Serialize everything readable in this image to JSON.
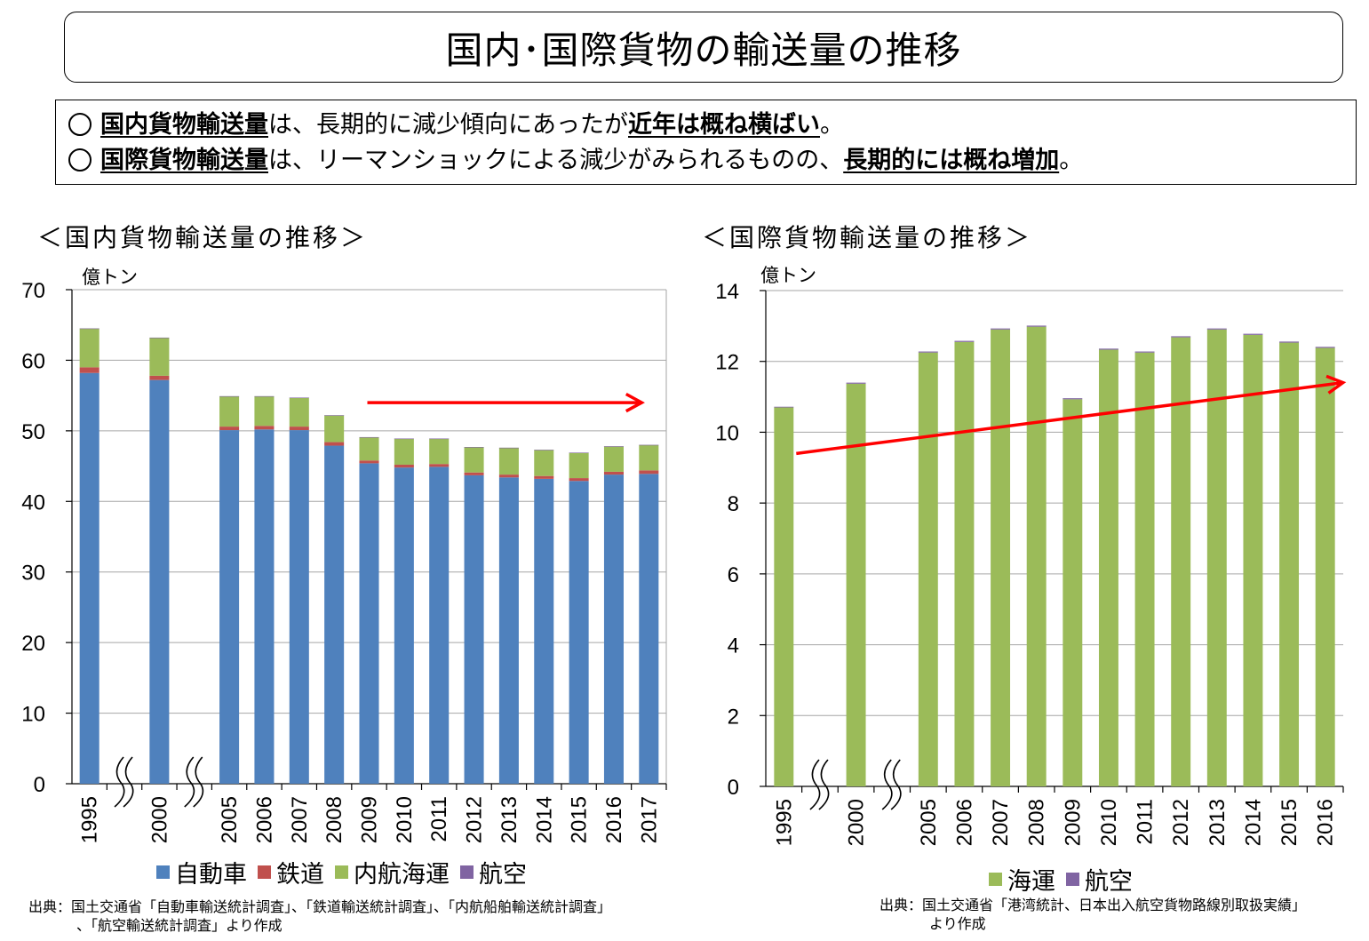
{
  "page": {
    "title": "国内･国際貨物の輸送量の推移",
    "summary": [
      {
        "bullet": "○",
        "parts": [
          {
            "text": "国内貨物輸送量",
            "em": true
          },
          {
            "text": "は、長期的に減少傾向にあったが",
            "em": false
          },
          {
            "text": "近年は概ね横ばい",
            "em": true
          },
          {
            "text": "。",
            "em": false
          }
        ]
      },
      {
        "bullet": "○",
        "parts": [
          {
            "text": "国際貨物輸送量",
            "em": true
          },
          {
            "text": "は、リーマンショックによる減少がみられるものの、",
            "em": false
          },
          {
            "text": "長期的には概ね増加",
            "em": true
          },
          {
            "text": "。",
            "em": false
          }
        ]
      }
    ]
  },
  "chart_data": [
    {
      "type": "bar",
      "stacked": true,
      "title": "＜国内貨物輸送量の推移＞",
      "ylabel": "億トン",
      "ylim": [
        0,
        70
      ],
      "yticks": [
        0,
        10,
        20,
        30,
        40,
        50,
        60,
        70
      ],
      "grid": true,
      "axis_breaks_after": [
        "1995",
        "2000"
      ],
      "categories": [
        "1995",
        "2000",
        "2005",
        "2006",
        "2007",
        "2008",
        "2009",
        "2010",
        "2011",
        "2012",
        "2013",
        "2014",
        "2015",
        "2016",
        "2017"
      ],
      "series": [
        {
          "name": "自動車",
          "color": "#4f81bd",
          "values": [
            58.2,
            57.2,
            50.1,
            50.2,
            50.1,
            47.9,
            45.4,
            44.8,
            44.9,
            43.7,
            43.4,
            43.2,
            42.9,
            43.8,
            43.9
          ]
        },
        {
          "name": "鉄道",
          "color": "#c0504d",
          "values": [
            0.8,
            0.6,
            0.5,
            0.5,
            0.5,
            0.5,
            0.4,
            0.4,
            0.4,
            0.4,
            0.4,
            0.4,
            0.4,
            0.4,
            0.5
          ]
        },
        {
          "name": "内航海運",
          "color": "#9bbb59",
          "values": [
            5.5,
            5.4,
            4.3,
            4.2,
            4.1,
            3.8,
            3.3,
            3.7,
            3.6,
            3.6,
            3.8,
            3.7,
            3.6,
            3.6,
            3.6
          ]
        },
        {
          "name": "航空",
          "color": "#8064a2",
          "values": [
            0.01,
            0.01,
            0.01,
            0.01,
            0.01,
            0.01,
            0.01,
            0.01,
            0.01,
            0.01,
            0.01,
            0.01,
            0.01,
            0.01,
            0.01
          ]
        }
      ],
      "trend_arrow": {
        "color": "#ff0000",
        "from_x": "2009",
        "to_x": "2017",
        "from_y": 54,
        "to_y": 54
      },
      "source": [
        "出典：国土交通省「自動車輸送統計調査」、「鉄道輸送統計調査」、「内航船舶輸送統計調査」",
        "、「航空輸送統計調査」より作成"
      ]
    },
    {
      "type": "bar",
      "stacked": true,
      "title": "＜国際貨物輸送量の推移＞",
      "ylabel": "億トン",
      "ylim": [
        0,
        14
      ],
      "yticks": [
        0,
        2,
        4,
        6,
        8,
        10,
        12,
        14
      ],
      "grid": true,
      "axis_breaks_after": [
        "1995",
        "2000"
      ],
      "categories": [
        "1995",
        "2000",
        "2005",
        "2006",
        "2007",
        "2008",
        "2009",
        "2010",
        "2011",
        "2012",
        "2013",
        "2014",
        "2015",
        "2016"
      ],
      "series": [
        {
          "name": "海運",
          "color": "#9bbb59",
          "values": [
            10.7,
            11.37,
            12.25,
            12.55,
            12.9,
            12.98,
            10.93,
            12.33,
            12.25,
            12.68,
            12.9,
            12.75,
            12.53,
            12.38
          ]
        },
        {
          "name": "航空",
          "color": "#8064a2",
          "values": [
            0.02,
            0.03,
            0.03,
            0.03,
            0.03,
            0.03,
            0.03,
            0.03,
            0.03,
            0.03,
            0.03,
            0.03,
            0.03,
            0.03
          ]
        }
      ],
      "trend_arrow": {
        "color": "#ff0000",
        "from_x": "1995",
        "to_x": "2016",
        "from_y": 9.4,
        "to_y": 11.4
      },
      "source": [
        "出典：国土交通省「港湾統計、日本出入航空貨物路線別取扱実績」",
        "より作成"
      ]
    }
  ]
}
